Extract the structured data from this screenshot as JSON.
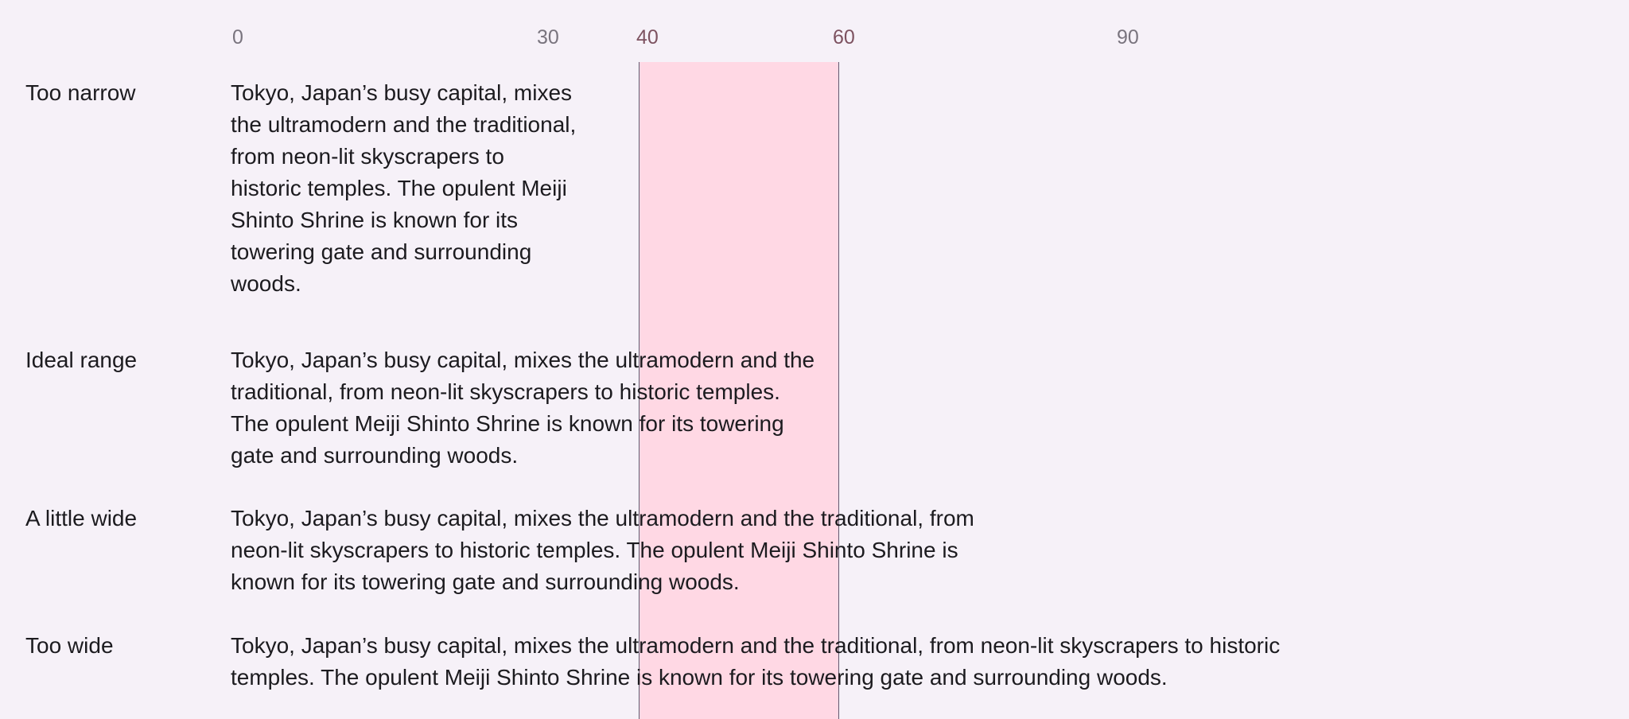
{
  "ruler": {
    "ticks": [
      {
        "label": "0",
        "highlight": false
      },
      {
        "label": "30",
        "highlight": false
      },
      {
        "label": "40",
        "highlight": true
      },
      {
        "label": "60",
        "highlight": true
      },
      {
        "label": "90",
        "highlight": false
      }
    ],
    "ideal_range": {
      "min_chars": 40,
      "max_chars": 60
    }
  },
  "rows": [
    {
      "label": "Too narrow",
      "text": "Tokyo, Japan’s busy capital, mixes the ultramodern and the traditional, from neon-lit skyscrapers to historic temples. The opulent Meiji Shinto Shrine is known for its towering gate and surrounding woods."
    },
    {
      "label": "Ideal range",
      "text": "Tokyo, Japan’s busy capital, mixes the ultramodern and the traditional, from neon-lit skyscrapers to historic temples. The opulent Meiji Shinto Shrine is known for its towering gate and surrounding woods."
    },
    {
      "label": "A little wide",
      "text": "Tokyo, Japan’s busy capital, mixes the ultramodern and the traditional, from neon-lit skyscrapers to historic temples. The opulent Meiji Shinto Shrine is known for its towering gate and surrounding woods."
    },
    {
      "label": "Too wide",
      "text": "Tokyo, Japan’s busy capital, mixes the ultramodern and the traditional, from neon-lit skyscrapers to historic temples. The opulent Meiji Shinto Shrine is known for its towering gate and surrounding woods."
    }
  ],
  "colors": {
    "background": "#f6f1f8",
    "ideal_band_fill": "#ffd8e4",
    "ideal_band_border": "#625b71",
    "tick_text": "#79747e",
    "tick_text_highlight": "#7d5260",
    "body_text": "#1c1b1f"
  }
}
